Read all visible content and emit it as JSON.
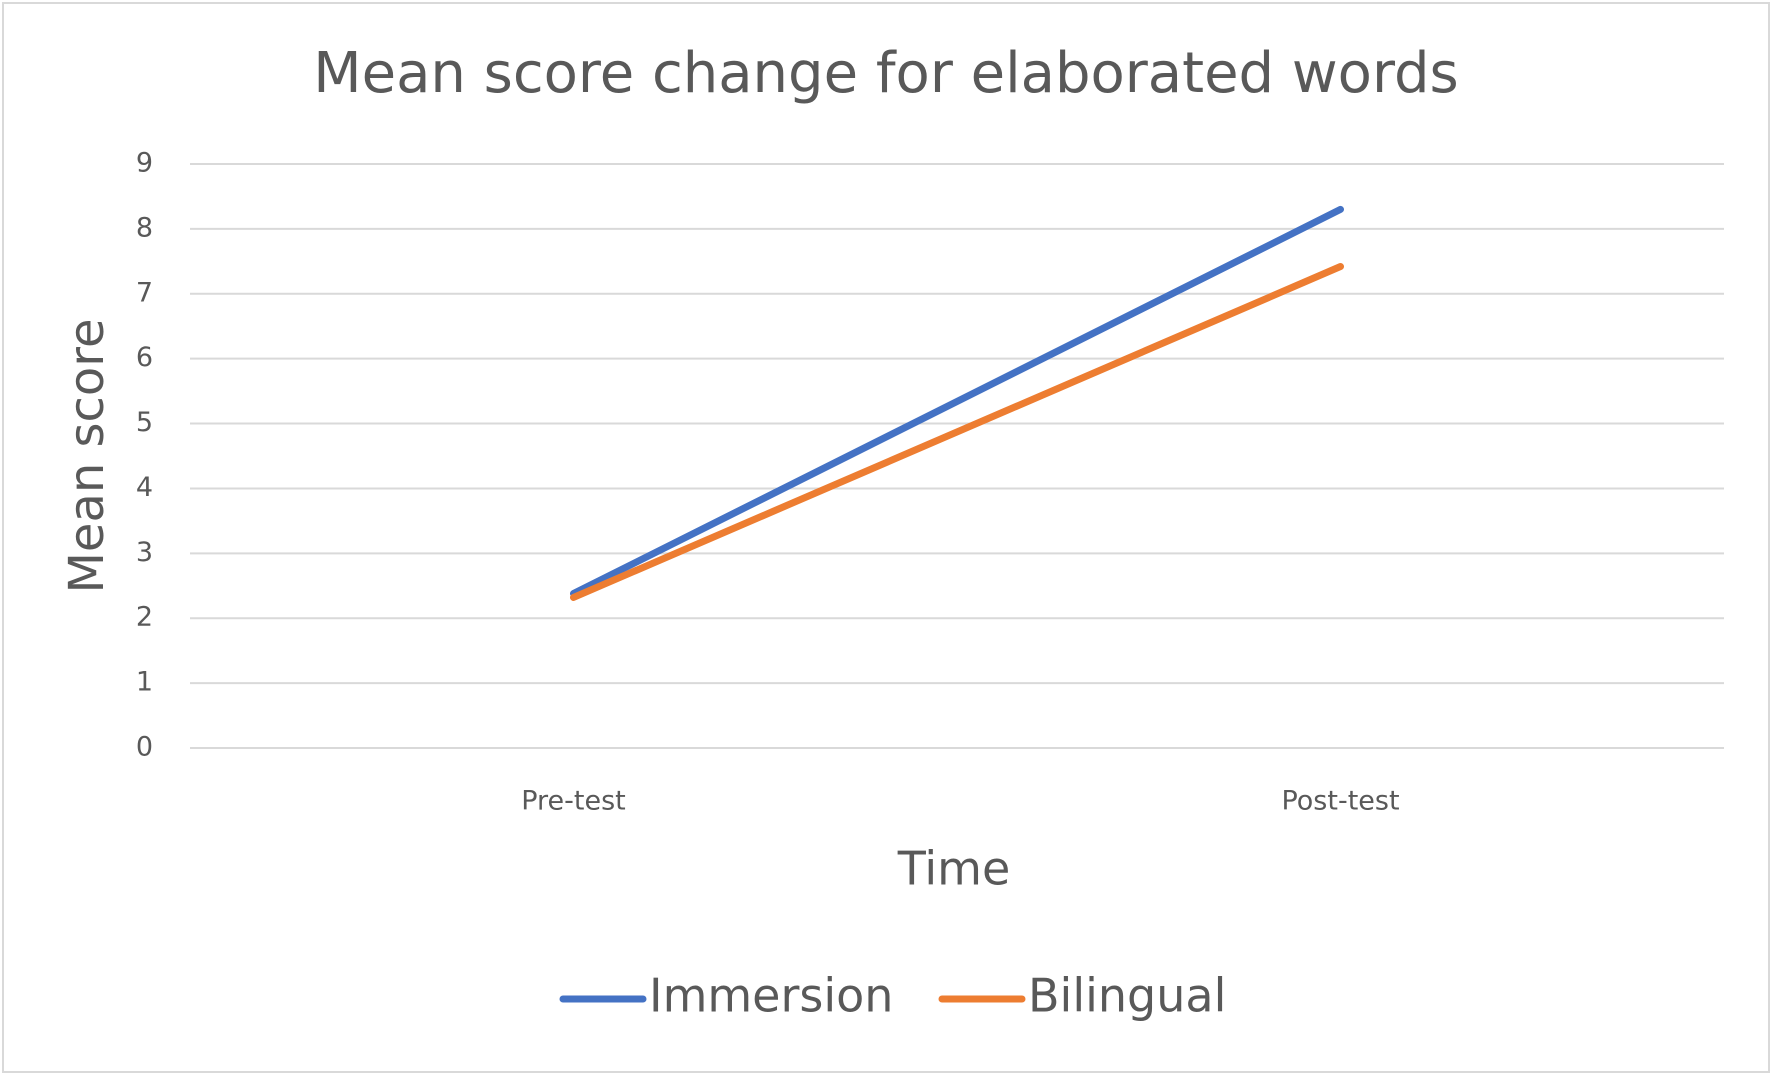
{
  "chart_data": {
    "type": "line",
    "title": "Mean score change for elaborated words",
    "x_label": "Time",
    "y_label": "Mean score",
    "categories": [
      "Pre-test",
      "Post-test"
    ],
    "series": [
      {
        "name": "Immersion",
        "color": "#4472c4",
        "values": [
          2.38,
          8.3
        ]
      },
      {
        "name": "Bilingual",
        "color": "#ed7d31",
        "values": [
          2.32,
          7.42
        ]
      }
    ],
    "ylim": [
      0,
      9
    ],
    "yticks": [
      0,
      1,
      2,
      3,
      4,
      5,
      6,
      7,
      8,
      9
    ],
    "grid": true,
    "legend": "bottom"
  }
}
